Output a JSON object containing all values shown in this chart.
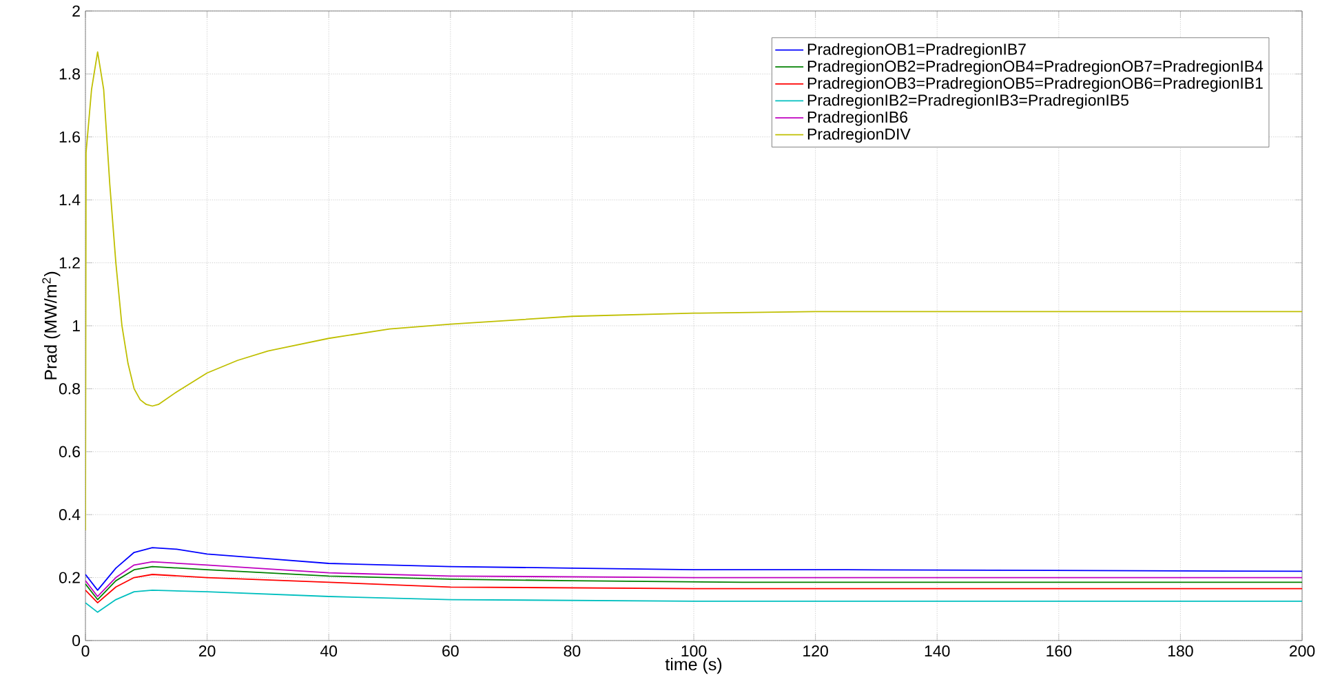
{
  "chart_data": {
    "type": "line",
    "xlabel": "time (s)",
    "ylabel": "Prad (MW/m$^{2}$)",
    "xlim": [
      0,
      200
    ],
    "ylim": [
      0,
      2
    ],
    "xticks": [
      0,
      20,
      40,
      60,
      80,
      100,
      120,
      140,
      160,
      180,
      200
    ],
    "yticks": [
      0,
      0.2,
      0.4,
      0.6,
      0.8,
      1,
      1.2,
      1.4,
      1.6,
      1.8,
      2
    ],
    "grid": true,
    "legend": "top right",
    "line_style": "solid",
    "series": [
      {
        "name": "PradregionOB1=PradregionIB7",
        "color": "#0000ff",
        "x": [
          0,
          2,
          5,
          8,
          11,
          15,
          20,
          30,
          40,
          60,
          80,
          100,
          125,
          200
        ],
        "values": [
          0.21,
          0.16,
          0.23,
          0.28,
          0.295,
          0.29,
          0.275,
          0.26,
          0.245,
          0.235,
          0.23,
          0.225,
          0.225,
          0.22
        ]
      },
      {
        "name": "PradregionOB2=PradregionOB4=PradregionOB7=PradregionIB4",
        "color": "#008000",
        "x": [
          0,
          2,
          5,
          8,
          11,
          20,
          40,
          60,
          80,
          108,
          200
        ],
        "values": [
          0.18,
          0.13,
          0.19,
          0.225,
          0.235,
          0.225,
          0.205,
          0.195,
          0.19,
          0.185,
          0.185
        ]
      },
      {
        "name": "PradregionOB3=PradregionOB5=PradregionOB6=PradregionIB1",
        "color": "#ff0000",
        "x": [
          0,
          2,
          5,
          8,
          11,
          20,
          40,
          60,
          100,
          200
        ],
        "values": [
          0.16,
          0.12,
          0.17,
          0.2,
          0.21,
          0.2,
          0.185,
          0.17,
          0.165,
          0.165
        ]
      },
      {
        "name": "PradregionIB2=PradregionIB3=PradregionIB5",
        "color": "#00bfbf",
        "x": [
          0,
          2,
          5,
          8,
          11,
          20,
          40,
          60,
          100,
          200
        ],
        "values": [
          0.12,
          0.09,
          0.13,
          0.155,
          0.16,
          0.155,
          0.14,
          0.13,
          0.125,
          0.125
        ]
      },
      {
        "name": "PradregionIB6",
        "color": "#bf00bf",
        "x": [
          0,
          2,
          5,
          8,
          11,
          20,
          40,
          60,
          100,
          200
        ],
        "values": [
          0.19,
          0.14,
          0.2,
          0.24,
          0.25,
          0.24,
          0.215,
          0.205,
          0.2,
          0.2
        ]
      },
      {
        "name": "PradregionDIV",
        "color": "#bfbf00",
        "x": [
          0,
          0.1,
          1,
          2,
          3,
          4,
          5,
          6,
          7,
          8,
          9,
          10,
          11,
          12,
          15,
          20,
          25,
          30,
          40,
          50,
          60,
          80,
          100,
          120,
          150,
          200
        ],
        "values": [
          0.35,
          1.55,
          1.75,
          1.87,
          1.75,
          1.45,
          1.2,
          1.0,
          0.88,
          0.8,
          0.765,
          0.75,
          0.745,
          0.75,
          0.79,
          0.85,
          0.89,
          0.92,
          0.96,
          0.99,
          1.005,
          1.03,
          1.04,
          1.045,
          1.045,
          1.045
        ]
      }
    ]
  }
}
